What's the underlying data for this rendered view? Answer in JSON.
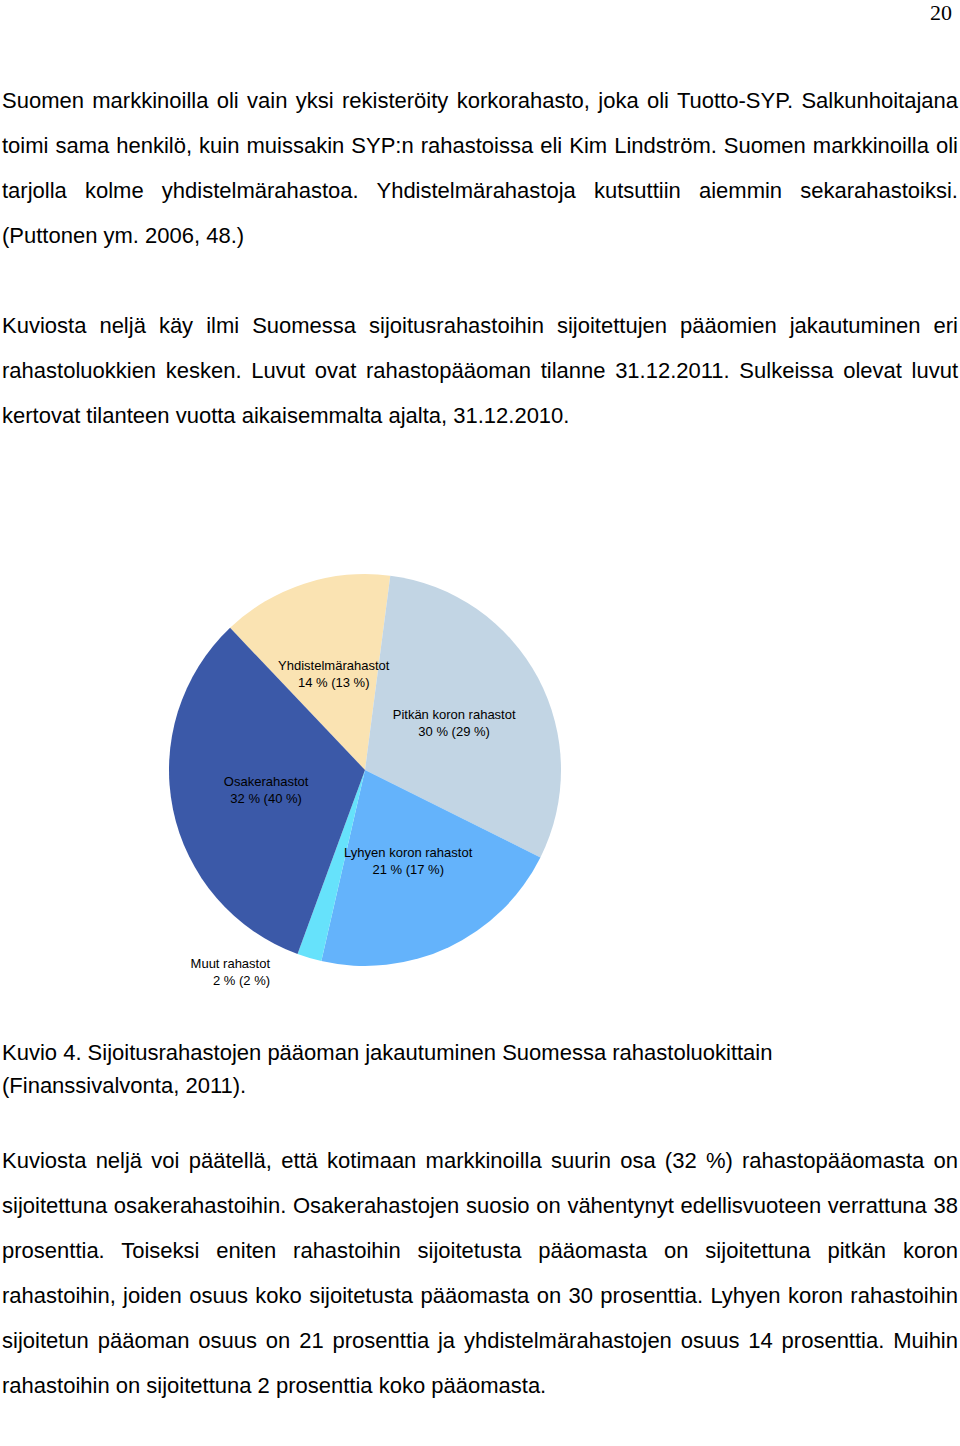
{
  "page_number": "20",
  "paragraphs_before": [
    "Suomen markkinoilla oli vain yksi rekisteröity korkorahasto, joka oli Tuotto-SYP. Salkunhoitajana toimi sama henkilö, kuin muissakin SYP:n rahastoissa eli Kim Lindström. Suomen markkinoilla oli tarjolla kolme yhdistelmärahastoa. Yhdistelmärahastoja kutsuttiin aiemmin sekarahastoiksi. (Puttonen ym. 2006, 48.)",
    "Kuviosta neljä käy ilmi Suomessa sijoitusrahastoihin sijoitettujen pääomien jakautuminen eri rahastoluokkien kesken. Luvut ovat rahastopääoman tilanne 31.12.2011. Sulkeissa olevat luvut kertovat tilanteen vuotta aikaisemmalta ajalta, 31.12.2010."
  ],
  "chart_data": {
    "type": "pie",
    "categories": [
      "Yhdistelmärahastot",
      "Pitkän koron rahastot",
      "Lyhyen koron rahastot",
      "Muut rahastot",
      "Osakerahastot"
    ],
    "values": [
      14,
      30,
      21,
      2,
      32
    ],
    "value_labels": [
      "14 % (13 %)",
      "30 % (29 %)",
      "21 % (17 %)",
      "2 % (2 %)",
      "32 % (40 %)"
    ],
    "colors": [
      "#fae3b2",
      "#c2d5e4",
      "#64b3fb",
      "#66e2fb",
      "#3b59a8"
    ],
    "data_labels": true
  },
  "caption": "Kuvio 4. Sijoitusrahastojen pääoman jakautuminen Suomessa rahastoluokittain (Finanssivalvonta, 2011).",
  "paragraphs_after": [
    "Kuviosta neljä voi päätellä, että kotimaan markkinoilla suurin osa (32 %) rahastopääomasta on sijoitettuna osakerahastoihin. Osakerahastojen suosio on vähentynyt edellisvuoteen verrattuna 38 prosenttia. Toiseksi eniten rahastoihin sijoitetusta pääomasta on sijoitettuna pitkän koron rahastoihin, joiden osuus koko sijoitetusta pääomasta on 30 prosenttia. Lyhyen koron rahastoihin sijoitetun pääoman osuus on 21 prosenttia ja yhdistelmärahastojen osuus 14 prosenttia. Muihin rahastoihin on sijoitettuna 2 prosenttia koko pääomasta."
  ]
}
